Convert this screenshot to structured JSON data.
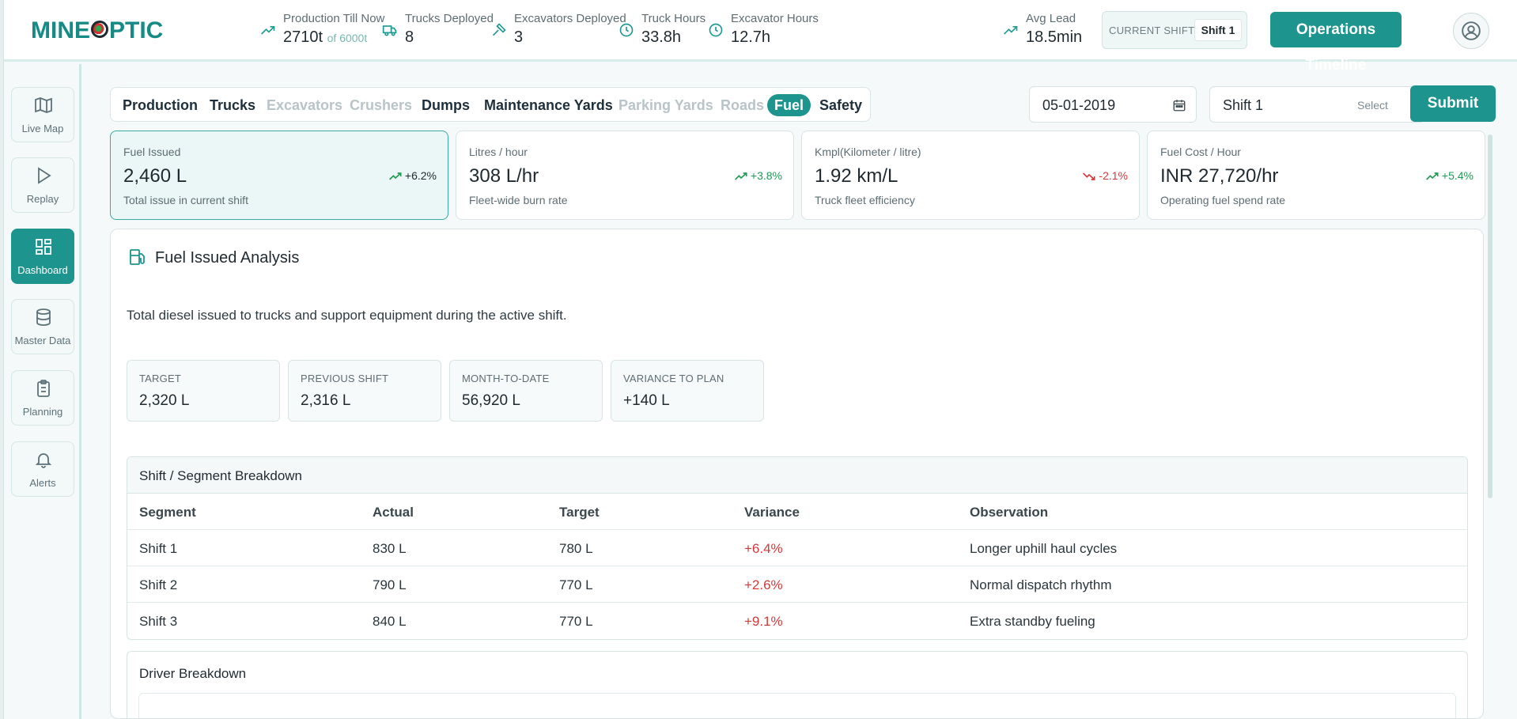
{
  "brand": {
    "name_left": "MINE",
    "name_right": "PTIC"
  },
  "header": {
    "stats": [
      {
        "label": "Production Till Now",
        "value": "2710t",
        "sub": "of 6000t",
        "icon": "trend-up-icon"
      },
      {
        "label": "Trucks Deployed",
        "value": "8",
        "icon": "truck-icon"
      },
      {
        "label": "Excavators Deployed",
        "value": "3",
        "icon": "excavator-icon"
      },
      {
        "label": "Truck Hours",
        "value": "33.8h",
        "icon": "clock-icon"
      },
      {
        "label": "Excavator Hours",
        "value": "12.7h",
        "icon": "clock-icon"
      },
      {
        "label": "Avg Lead",
        "value": "18.5min",
        "icon": "trend-up-icon"
      }
    ],
    "current_shift_label": "CURRENT SHIFT",
    "current_shift_value": "Shift 1",
    "timeline_button": "Operations Timeline"
  },
  "sidebar": {
    "items": [
      {
        "label": "Live Map",
        "icon": "map-icon",
        "active": false
      },
      {
        "label": "Replay",
        "icon": "play-icon",
        "active": false
      },
      {
        "label": "Dashboard",
        "icon": "dashboard-icon",
        "active": true
      },
      {
        "label": "Master Data",
        "icon": "database-icon",
        "active": false
      },
      {
        "label": "Planning",
        "icon": "clipboard-icon",
        "active": false
      },
      {
        "label": "Alerts",
        "icon": "bell-icon",
        "active": false
      }
    ]
  },
  "tabs": [
    {
      "label": "Production",
      "state": "normal"
    },
    {
      "label": "Trucks",
      "state": "normal"
    },
    {
      "label": "Excavators",
      "state": "disabled"
    },
    {
      "label": "Crushers",
      "state": "disabled"
    },
    {
      "label": "Dumps",
      "state": "normal"
    },
    {
      "label": "Maintenance Yards",
      "state": "normal"
    },
    {
      "label": "Parking Yards",
      "state": "disabled"
    },
    {
      "label": "Roads",
      "state": "disabled"
    },
    {
      "label": "Fuel",
      "state": "active"
    },
    {
      "label": "Safety",
      "state": "normal"
    }
  ],
  "filters": {
    "date": "05-01-2019",
    "shift": "Shift 1",
    "shift_hint": "Select",
    "submit": "Submit"
  },
  "kpis": [
    {
      "label": "Fuel Issued",
      "value": "2,460 L",
      "trend": "+6.2%",
      "direction": "up",
      "desc": "Total issue in current shift",
      "active": true
    },
    {
      "label": "Litres / hour",
      "value": "308 L/hr",
      "trend": "+3.8%",
      "direction": "up",
      "desc": "Fleet-wide burn rate",
      "active": false
    },
    {
      "label": "Kmpl(Kilometer / litre)",
      "value": "1.92 km/L",
      "trend": "-2.1%",
      "direction": "down",
      "desc": "Truck fleet efficiency",
      "active": false
    },
    {
      "label": "Fuel Cost / Hour",
      "value": "INR 27,720/hr",
      "trend": "+5.4%",
      "direction": "up",
      "desc": "Operating fuel spend rate",
      "active": false
    }
  ],
  "analysis": {
    "title": "Fuel Issued Analysis",
    "description": "Total diesel issued to trucks and support equipment during the active shift.",
    "metrics": [
      {
        "label": "TARGET",
        "value": "2,320 L"
      },
      {
        "label": "PREVIOUS SHIFT",
        "value": "2,316 L"
      },
      {
        "label": "MONTH-TO-DATE",
        "value": "56,920 L"
      },
      {
        "label": "VARIANCE TO PLAN",
        "value": "+140 L"
      }
    ],
    "segment_table": {
      "title": "Shift / Segment Breakdown",
      "columns": [
        "Segment",
        "Actual",
        "Target",
        "Variance",
        "Observation"
      ],
      "rows": [
        [
          "Shift 1",
          "830 L",
          "780 L",
          "+6.4%",
          "Longer uphill haul cycles"
        ],
        [
          "Shift 2",
          "790 L",
          "770 L",
          "+2.6%",
          "Normal dispatch rhythm"
        ],
        [
          "Shift 3",
          "840 L",
          "770 L",
          "+9.1%",
          "Extra standby fueling"
        ]
      ]
    },
    "driver_table": {
      "title": "Driver Breakdown"
    }
  },
  "colors": {
    "accent": "#1d948d",
    "up": "#1f9a55",
    "down": "#d23a3a"
  }
}
